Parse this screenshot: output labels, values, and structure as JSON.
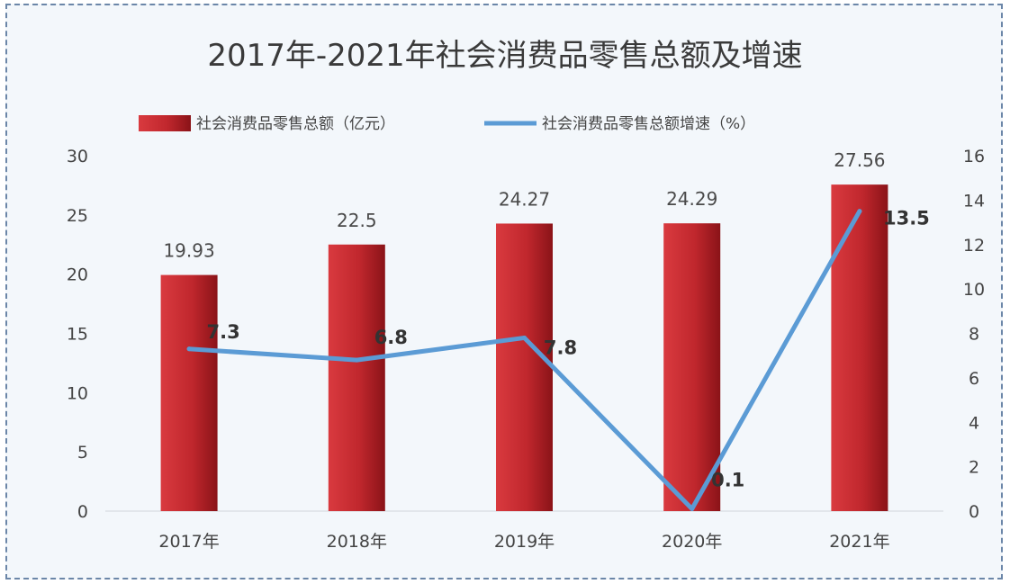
{
  "chart_data": {
    "type": "bar",
    "title": "2017年-2021年社会消费品零售总额及增速",
    "categories": [
      "2017年",
      "2018年",
      "2019年",
      "2020年",
      "2021年"
    ],
    "series": [
      {
        "name": "社会消费品零售总额（亿元）",
        "type": "bar",
        "axis": "left",
        "values": [
          19.93,
          22.5,
          24.27,
          24.29,
          27.56
        ],
        "labels": [
          "19.93",
          "22.5",
          "24.27",
          "24.29",
          "27.56"
        ],
        "color": "#c0272d"
      },
      {
        "name": "社会消费品零售总额增速（%）",
        "type": "line",
        "axis": "right",
        "values": [
          7.3,
          6.8,
          7.8,
          0.1,
          13.5
        ],
        "labels": [
          "7.3",
          "6.8",
          "7.8",
          "0.1",
          "13.5"
        ],
        "color": "#5b9bd5"
      }
    ],
    "ylim_left": [
      0,
      30
    ],
    "yticks_left": [
      "0",
      "5",
      "10",
      "15",
      "20",
      "25",
      "30"
    ],
    "ylim_right": [
      0,
      16
    ],
    "yticks_right": [
      "0",
      "2",
      "4",
      "6",
      "8",
      "10",
      "12",
      "14",
      "16"
    ],
    "legend_position": "top",
    "grid": false
  }
}
